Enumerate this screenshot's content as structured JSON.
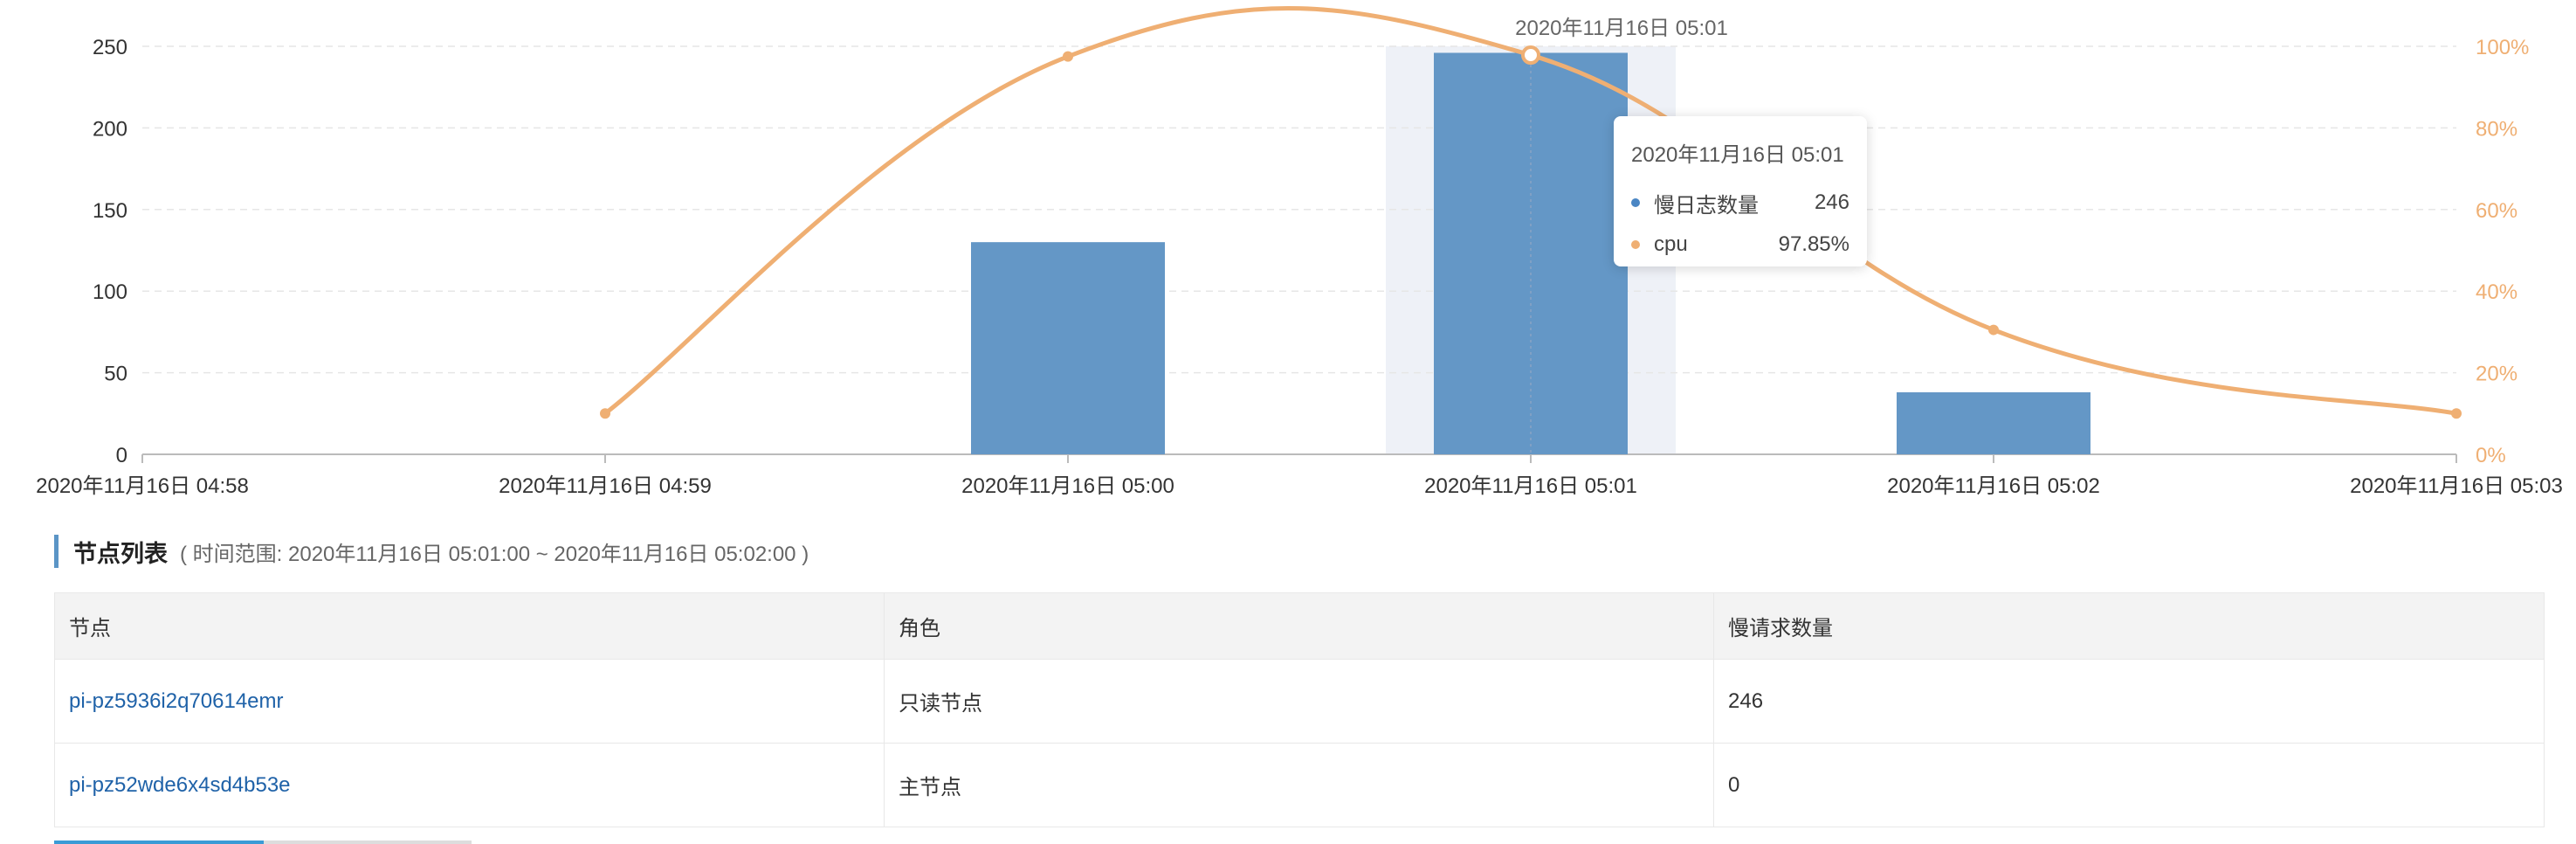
{
  "chart_data": {
    "type": "bar",
    "categories": [
      "2020年11月16日 04:58",
      "2020年11月16日 04:59",
      "2020年11月16日 05:00",
      "2020年11月16日 05:01",
      "2020年11月16日 05:02",
      "2020年11月16日 05:03"
    ],
    "series": [
      {
        "name": "慢日志数量",
        "type": "bar",
        "axis": "left",
        "color": "#6497C6",
        "values": [
          0,
          0,
          130,
          246,
          38,
          0
        ]
      },
      {
        "name": "cpu",
        "type": "line",
        "axis": "right",
        "color": "#EFAF73",
        "values": [
          null,
          10,
          97.5,
          97.85,
          30.5,
          10
        ]
      }
    ],
    "y_left": {
      "ticks": [
        0,
        50,
        100,
        150,
        200,
        250
      ],
      "ylim": [
        0,
        250
      ]
    },
    "y_right": {
      "ticks": [
        "0%",
        "20%",
        "40%",
        "60%",
        "80%",
        "100%"
      ],
      "ylim": [
        0,
        100
      ]
    },
    "highlight_category": "2020年11月16日 05:01",
    "grid": true
  },
  "tooltip": {
    "title": "2020年11月16日 05:01",
    "rows": [
      {
        "name": "慢日志数量",
        "value": "246",
        "color": "#4a86c4"
      },
      {
        "name": "cpu",
        "value": "97.85%",
        "color": "#EFAF73"
      }
    ]
  },
  "hover_label": "2020年11月16日 05:01",
  "section": {
    "title": "节点列表",
    "subtitle": "( 时间范围: 2020年11月16日 05:01:00 ~ 2020年11月16日 05:02:00 )"
  },
  "table": {
    "headers": [
      "节点",
      "角色",
      "慢请求数量"
    ],
    "rows": [
      {
        "node": "pi-pz5936i2q70614emr",
        "role": "只读节点",
        "count": "246"
      },
      {
        "node": "pi-pz52wde6x4sd4b53e",
        "role": "主节点",
        "count": "0"
      }
    ]
  }
}
